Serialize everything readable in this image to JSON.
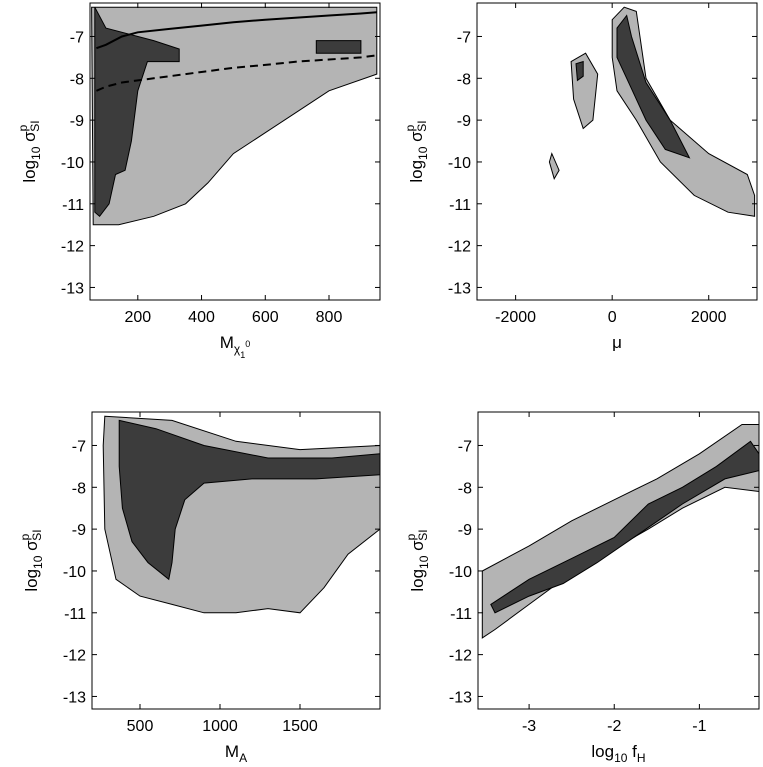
{
  "chart_data": [
    {
      "type": "contour",
      "xlabel": "M",
      "xlabel_sub": "χ",
      "xlabel_sub_sub": "1",
      "xlabel_sub_sup": "0",
      "ylabel": "log",
      "ylabel_sub": "10",
      "ylabel_sigma": "σ",
      "ylabel_sigma_sup": "p",
      "ylabel_sigma_sub": "SI",
      "xlim": [
        50,
        960
      ],
      "ylim": [
        -13.3,
        -6.2
      ],
      "xticks": [
        200,
        400,
        600,
        800
      ],
      "yticks": [
        -13,
        -12,
        -11,
        -10,
        -9,
        -8,
        -7
      ],
      "regions": {
        "outer_color": "#b4b4b4",
        "inner_color": "#3c3c3c",
        "outer": [
          [
            55,
            -6.3
          ],
          [
            950,
            -6.3
          ],
          [
            950,
            -7.9
          ],
          [
            800,
            -8.3
          ],
          [
            700,
            -8.8
          ],
          [
            600,
            -9.3
          ],
          [
            500,
            -9.8
          ],
          [
            420,
            -10.5
          ],
          [
            350,
            -11
          ],
          [
            250,
            -11.3
          ],
          [
            140,
            -11.5
          ],
          [
            60,
            -11.5
          ]
        ],
        "inner": [
          [
            65,
            -6.3
          ],
          [
            100,
            -6.8
          ],
          [
            250,
            -7.1
          ],
          [
            330,
            -7.3
          ],
          [
            330,
            -7.6
          ],
          [
            230,
            -7.6
          ],
          [
            200,
            -8.3
          ],
          [
            180,
            -9.5
          ],
          [
            160,
            -10.2
          ],
          [
            130,
            -10.3
          ],
          [
            110,
            -11
          ],
          [
            80,
            -11.3
          ],
          [
            65,
            -11.2
          ]
        ],
        "inner_extra": [
          [
            [
              760,
              -7.1
            ],
            [
              900,
              -7.1
            ],
            [
              900,
              -7.4
            ],
            [
              760,
              -7.4
            ]
          ]
        ]
      },
      "curves": [
        {
          "style": "solid",
          "x": [
            70,
            100,
            150,
            200,
            300,
            400,
            500,
            600,
            700,
            800,
            900,
            950
          ],
          "y": [
            -7.28,
            -7.2,
            -7.0,
            -6.9,
            -6.82,
            -6.74,
            -6.66,
            -6.6,
            -6.55,
            -6.5,
            -6.45,
            -6.42
          ]
        },
        {
          "style": "dashed",
          "x": [
            70,
            100,
            150,
            200,
            300,
            400,
            500,
            600,
            700,
            800,
            900,
            950
          ],
          "y": [
            -8.3,
            -8.2,
            -8.1,
            -8.05,
            -7.95,
            -7.85,
            -7.75,
            -7.68,
            -7.6,
            -7.55,
            -7.5,
            -7.45
          ]
        }
      ]
    },
    {
      "type": "contour",
      "xlabel": "μ",
      "ylabel": "log",
      "ylabel_sub": "10",
      "ylabel_sigma": "σ",
      "ylabel_sigma_sup": "p",
      "ylabel_sigma_sub": "SI",
      "xlim": [
        -2800,
        3000
      ],
      "ylim": [
        -13.3,
        -6.2
      ],
      "xticks": [
        -2000,
        0,
        2000
      ],
      "yticks": [
        -13,
        -12,
        -11,
        -10,
        -9,
        -8,
        -7
      ],
      "regions": {
        "outer_color": "#b4b4b4",
        "inner_color": "#3c3c3c",
        "outer": [
          [
            0,
            -6.6
          ],
          [
            250,
            -6.3
          ],
          [
            500,
            -6.4
          ],
          [
            700,
            -8
          ],
          [
            1200,
            -9
          ],
          [
            2000,
            -9.8
          ],
          [
            2800,
            -10.3
          ],
          [
            2950,
            -10.8
          ],
          [
            2950,
            -11.3
          ],
          [
            2400,
            -11.2
          ],
          [
            1700,
            -10.8
          ],
          [
            1000,
            -10
          ],
          [
            500,
            -9
          ],
          [
            100,
            -8.3
          ],
          [
            0,
            -7.5
          ]
        ],
        "inner": [
          [
            100,
            -6.8
          ],
          [
            300,
            -6.5
          ],
          [
            400,
            -7
          ],
          [
            700,
            -8.1
          ],
          [
            1200,
            -9
          ],
          [
            1600,
            -9.9
          ],
          [
            1100,
            -9.7
          ],
          [
            700,
            -9
          ],
          [
            300,
            -8
          ],
          [
            100,
            -7.5
          ]
        ],
        "outer_extra": [
          [
            [
              -850,
              -7.6
            ],
            [
              -550,
              -7.4
            ],
            [
              -300,
              -7.9
            ],
            [
              -400,
              -9.0
            ],
            [
              -600,
              -9.2
            ],
            [
              -800,
              -8.5
            ]
          ],
          [
            [
              -1250,
              -9.8
            ],
            [
              -1100,
              -10.2
            ],
            [
              -1200,
              -10.4
            ],
            [
              -1300,
              -10.0
            ]
          ]
        ],
        "inner_extra": [
          [
            [
              -750,
              -7.65
            ],
            [
              -600,
              -7.6
            ],
            [
              -600,
              -7.95
            ],
            [
              -720,
              -8.05
            ]
          ]
        ]
      },
      "curves": []
    },
    {
      "type": "contour",
      "xlabel": "M",
      "xlabel_sub": "A",
      "ylabel": "log",
      "ylabel_sub": "10",
      "ylabel_sigma": "σ",
      "ylabel_sigma_sup": "p",
      "ylabel_sigma_sub": "SI",
      "xlim": [
        200,
        2000
      ],
      "ylim": [
        -13.3,
        -6.2
      ],
      "xticks": [
        500,
        1000,
        1500
      ],
      "yticks": [
        -13,
        -12,
        -11,
        -10,
        -9,
        -8,
        -7
      ],
      "regions": {
        "outer_color": "#b4b4b4",
        "inner_color": "#3c3c3c",
        "outer": [
          [
            280,
            -6.3
          ],
          [
            700,
            -6.4
          ],
          [
            1100,
            -6.9
          ],
          [
            1500,
            -7.1
          ],
          [
            2000,
            -7.0
          ],
          [
            2000,
            -9.0
          ],
          [
            1800,
            -9.6
          ],
          [
            1650,
            -10.4
          ],
          [
            1500,
            -11.0
          ],
          [
            1300,
            -10.9
          ],
          [
            1100,
            -11.0
          ],
          [
            900,
            -11.0
          ],
          [
            700,
            -10.8
          ],
          [
            500,
            -10.6
          ],
          [
            350,
            -10.2
          ],
          [
            280,
            -9.0
          ],
          [
            270,
            -7.0
          ]
        ],
        "inner": [
          [
            370,
            -6.4
          ],
          [
            600,
            -6.6
          ],
          [
            900,
            -7.0
          ],
          [
            1300,
            -7.3
          ],
          [
            1700,
            -7.3
          ],
          [
            2000,
            -7.2
          ],
          [
            2000,
            -7.7
          ],
          [
            1600,
            -7.8
          ],
          [
            1200,
            -7.8
          ],
          [
            900,
            -7.9
          ],
          [
            780,
            -8.3
          ],
          [
            720,
            -9.0
          ],
          [
            700,
            -9.8
          ],
          [
            680,
            -10.2
          ],
          [
            550,
            -9.8
          ],
          [
            450,
            -9.3
          ],
          [
            390,
            -8.5
          ],
          [
            370,
            -7.5
          ]
        ]
      },
      "curves": []
    },
    {
      "type": "contour",
      "xlabel": "log",
      "xlabel_sub": "10",
      "xlabel_f": "f",
      "xlabel_f_sub": "H",
      "ylabel": "log",
      "ylabel_sub": "10",
      "ylabel_sigma": "σ",
      "ylabel_sigma_sup": "p",
      "ylabel_sigma_sub": "SI",
      "xlim": [
        -3.6,
        -0.3
      ],
      "ylim": [
        -13.3,
        -6.2
      ],
      "xticks": [
        -3,
        -2,
        -1
      ],
      "yticks": [
        -13,
        -12,
        -11,
        -10,
        -9,
        -8,
        -7
      ],
      "regions": {
        "outer_color": "#b4b4b4",
        "inner_color": "#3c3c3c",
        "outer": [
          [
            -3.55,
            -10.0
          ],
          [
            -3.0,
            -9.4
          ],
          [
            -2.5,
            -8.8
          ],
          [
            -2.0,
            -8.3
          ],
          [
            -1.5,
            -7.8
          ],
          [
            -1.0,
            -7.2
          ],
          [
            -0.5,
            -6.5
          ],
          [
            -0.3,
            -6.5
          ],
          [
            -0.3,
            -8.1
          ],
          [
            -0.7,
            -8.0
          ],
          [
            -1.2,
            -8.5
          ],
          [
            -1.6,
            -9.0
          ],
          [
            -2.2,
            -9.7
          ],
          [
            -2.6,
            -10.2
          ],
          [
            -3.0,
            -10.8
          ],
          [
            -3.4,
            -11.4
          ],
          [
            -3.55,
            -11.6
          ]
        ],
        "inner": [
          [
            -3.45,
            -10.8
          ],
          [
            -3.0,
            -10.2
          ],
          [
            -2.5,
            -9.7
          ],
          [
            -2.0,
            -9.2
          ],
          [
            -1.6,
            -8.4
          ],
          [
            -1.2,
            -8.0
          ],
          [
            -0.8,
            -7.5
          ],
          [
            -0.4,
            -6.9
          ],
          [
            -0.3,
            -7.2
          ],
          [
            -0.3,
            -7.6
          ],
          [
            -0.7,
            -7.8
          ],
          [
            -1.2,
            -8.4
          ],
          [
            -1.7,
            -9.1
          ],
          [
            -2.2,
            -9.8
          ],
          [
            -2.6,
            -10.3
          ],
          [
            -3.0,
            -10.6
          ],
          [
            -3.4,
            -11.0
          ]
        ]
      },
      "curves": []
    }
  ]
}
